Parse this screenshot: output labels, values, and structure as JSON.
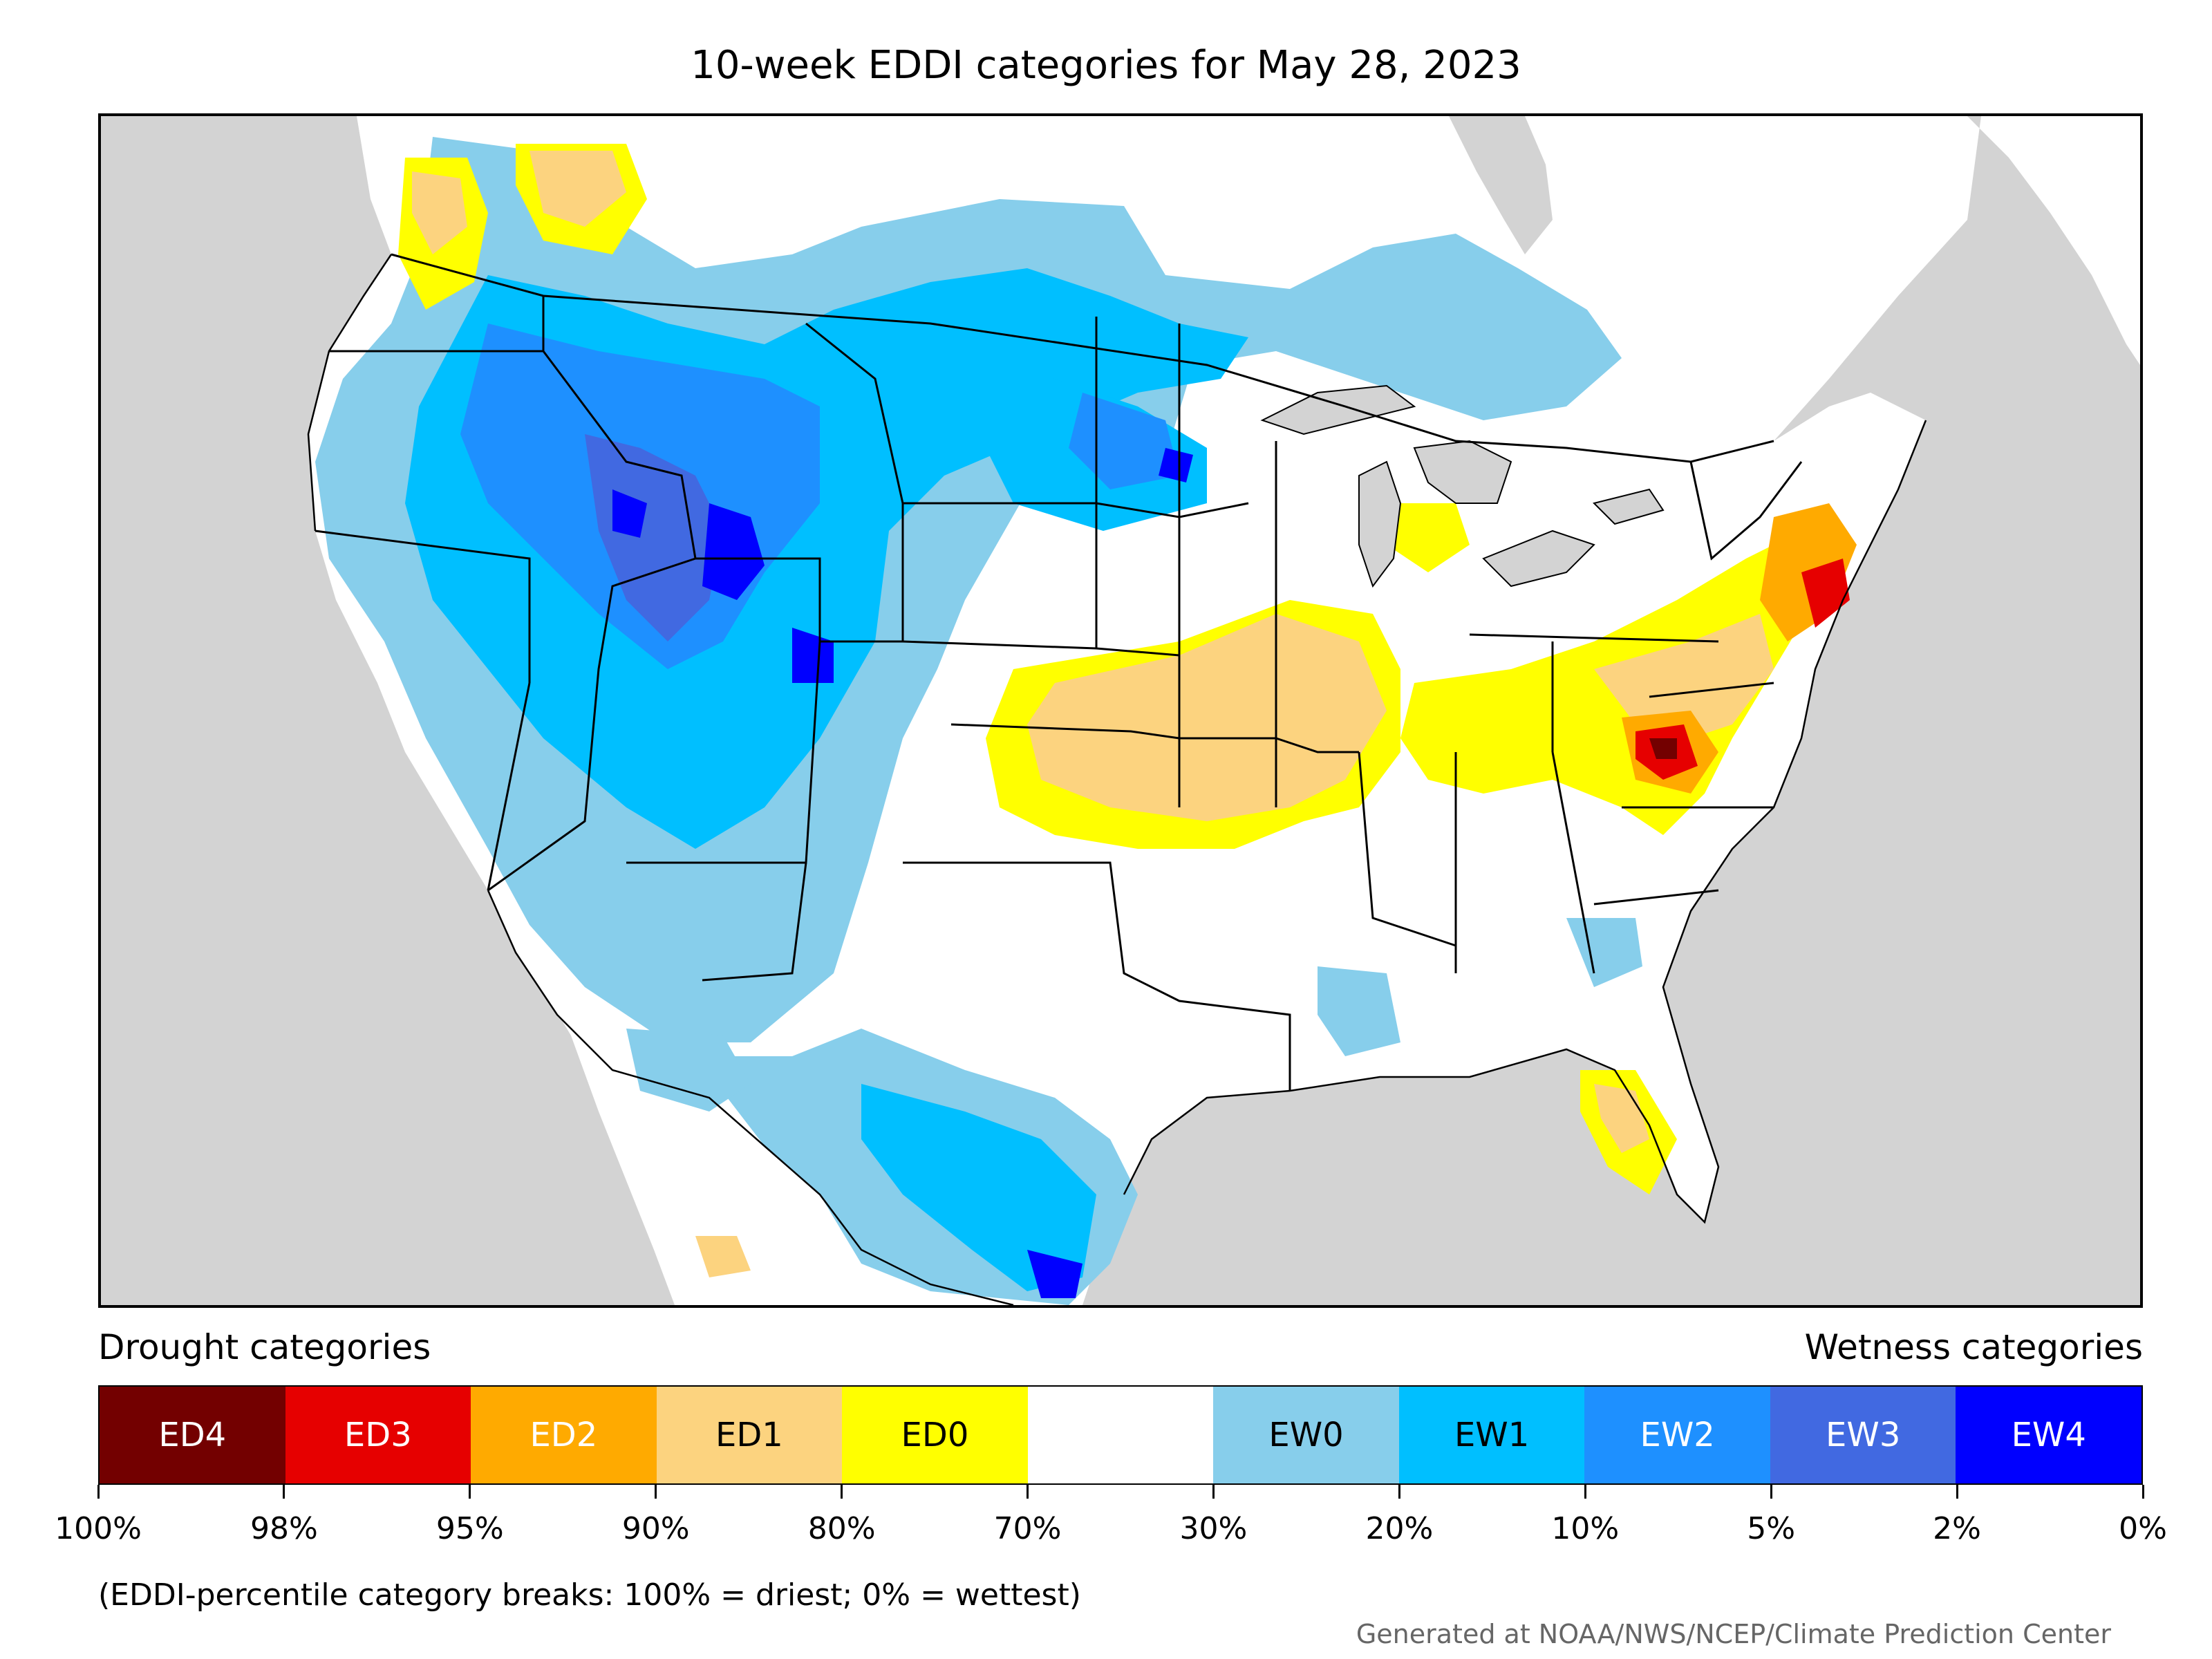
{
  "title": "10-week EDDI categories for May 28, 2023",
  "legend": {
    "left_heading": "Drought categories",
    "right_heading": "Wetness categories",
    "categories": [
      {
        "label": "ED4",
        "color": "#730000",
        "text_color": "#ffffff"
      },
      {
        "label": "ED3",
        "color": "#e60000",
        "text_color": "#ffffff"
      },
      {
        "label": "ED2",
        "color": "#ffaa00",
        "text_color": "#ffffff"
      },
      {
        "label": "ED1",
        "color": "#fcd37f",
        "text_color": "#000000"
      },
      {
        "label": "ED0",
        "color": "#ffff00",
        "text_color": "#000000"
      },
      {
        "label": "",
        "color": "#ffffff",
        "text_color": "#000000"
      },
      {
        "label": "EW0",
        "color": "#87ceeb",
        "text_color": "#000000"
      },
      {
        "label": "EW1",
        "color": "#00bfff",
        "text_color": "#000000"
      },
      {
        "label": "EW2",
        "color": "#1e90ff",
        "text_color": "#ffffff"
      },
      {
        "label": "EW3",
        "color": "#4169e1",
        "text_color": "#ffffff"
      },
      {
        "label": "EW4",
        "color": "#0000ff",
        "text_color": "#ffffff"
      }
    ],
    "breaks": [
      "100%",
      "98%",
      "95%",
      "90%",
      "80%",
      "70%",
      "30%",
      "20%",
      "10%",
      "5%",
      "2%",
      "0%"
    ]
  },
  "note": "(EDDI-percentile category breaks: 100% = driest; 0% = wettest)",
  "credit": "Generated at NOAA/NWS/NCEP/Climate Prediction Center",
  "colors": {
    "ocean": "#d3d3d3",
    "land": "#ffffff",
    "boundary": "#000000"
  }
}
